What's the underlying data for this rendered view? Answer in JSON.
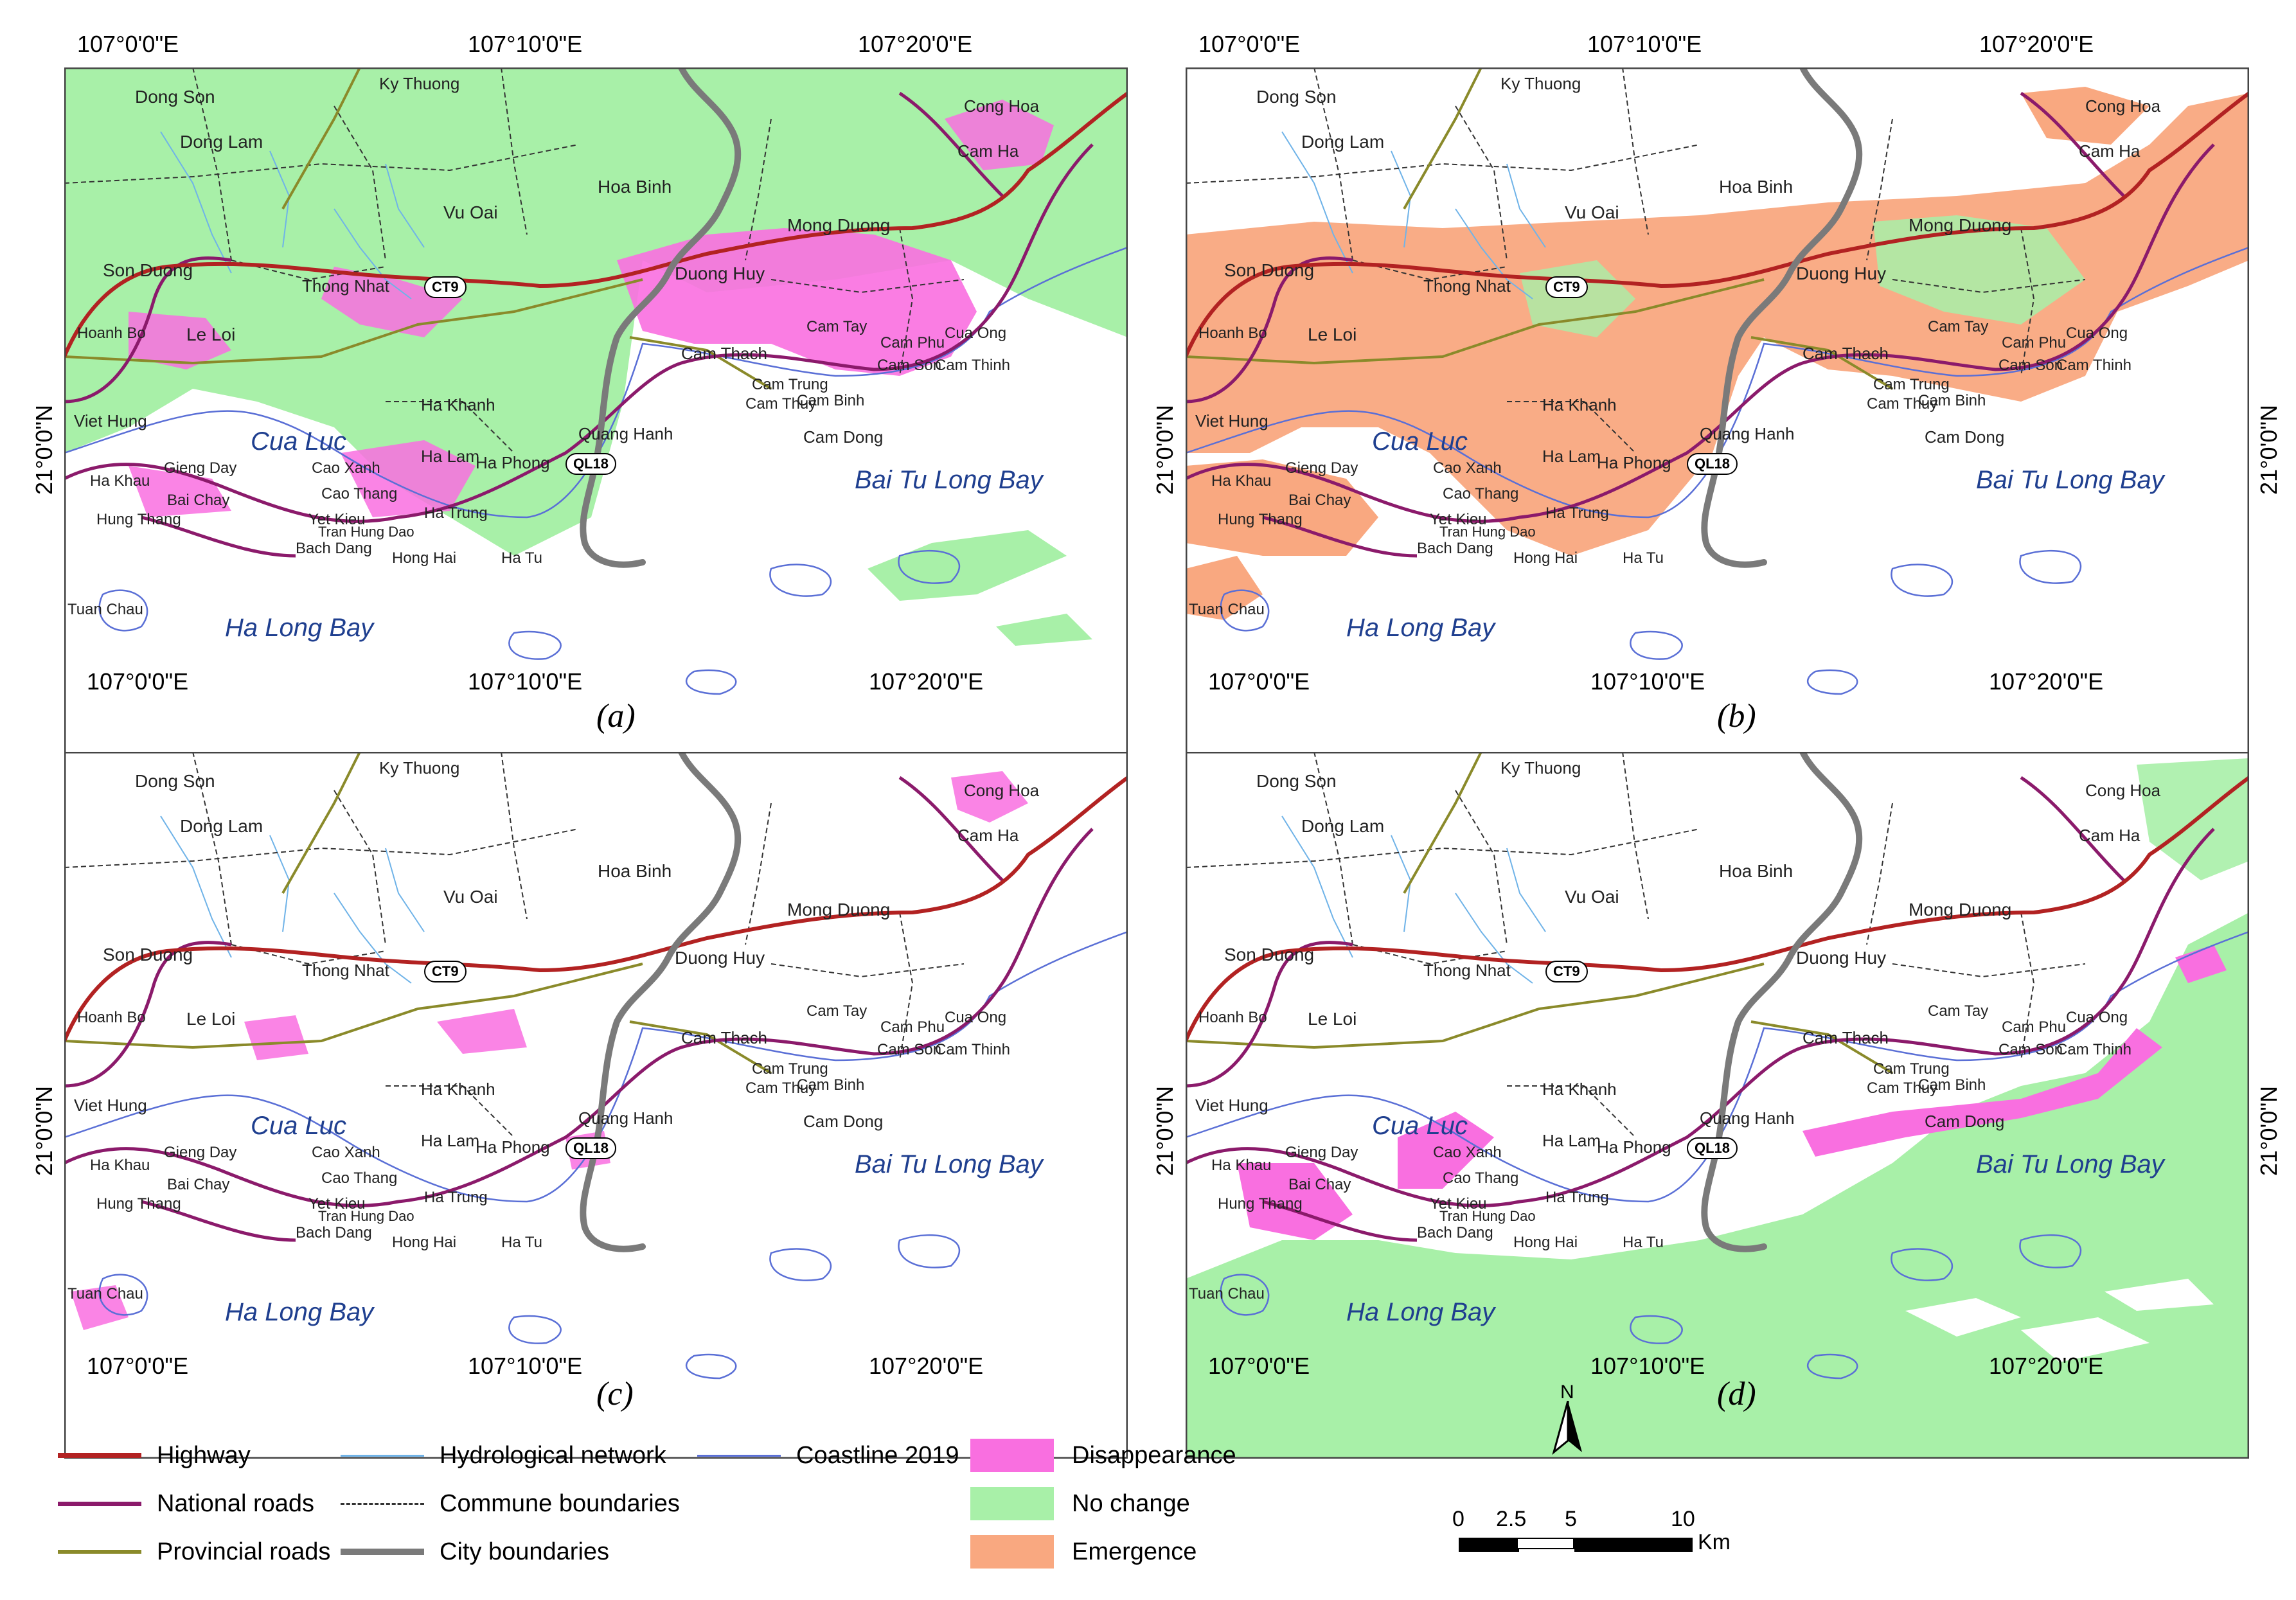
{
  "panels": [
    {
      "label": "(a)"
    },
    {
      "label": "(b)"
    },
    {
      "label": "(c)"
    },
    {
      "label": "(d)"
    }
  ],
  "axis": {
    "lon_ticks": [
      "107°0'0\"E",
      "107°10'0\"E",
      "107°20'0\"E"
    ],
    "lat_tick": "21°0'0\"N"
  },
  "places": {
    "dong_son": "Dong Son",
    "ky_thuong": "Ky Thuong",
    "dong_lam": "Dong Lam",
    "hoa_binh": "Hoa Binh",
    "vu_oai": "Vu Oai",
    "son_duong": "Son Duong",
    "thong_nhat": "Thong Nhat",
    "duong_huy": "Duong Huy",
    "mong_duong": "Mong Duong",
    "cong_hoa": "Cong Hoa",
    "cam_ha": "Cam Ha",
    "le_loi": "Le Loi",
    "hoanh_bo": "Hoanh Bo",
    "viet_hung": "Viet Hung",
    "ha_khanh": "Ha Khanh",
    "cam_thach": "Cam Thach",
    "cam_tay": "Cam Tay",
    "cam_phu": "Cam Phu",
    "cua_ong": "Cua Ong",
    "cam_son": "Cam Son",
    "cam_thinh": "Cam Thinh",
    "cam_trung": "Cam Trung",
    "cam_thuy": "Cam Thuy",
    "cam_binh": "Cam Binh",
    "cam_dong": "Cam Dong",
    "quang_hanh": "Quang Hanh",
    "ha_lam": "Ha Lam",
    "cao_xanh": "Cao Xanh",
    "ha_phong": "Ha Phong",
    "gieng_day": "Gieng Day",
    "ha_khau": "Ha Khau",
    "bai_chay": "Bai Chay",
    "hung_thang": "Hung Thang",
    "cao_thang": "Cao Thang",
    "yet_kieu": "Yet Kieu",
    "tran_hung_dao": "Tran Hung Dao",
    "ha_trung": "Ha Trung",
    "bach_dang": "Bach Dang",
    "hong_hai": "Hong Hai",
    "ha_tu": "Ha Tu",
    "tuan_chau": "Tuan Chau",
    "cua_luc": "Cua Luc",
    "bai_tu_long_bay": "Bai Tu Long Bay",
    "ha_long_bay": "Ha Long Bay",
    "ct9": "CT9",
    "ql18": "QL18"
  },
  "legend": {
    "highway": "Highway",
    "national_roads": "National roads",
    "provincial_roads": "Provincial roads",
    "hydro": "Hydrological network",
    "commune": "Commune boundaries",
    "city": "City boundaries",
    "coastline": "Coastline 2019",
    "disappearance": "Disappearance",
    "no_change": "No change",
    "emergence": "Emergence"
  },
  "colors": {
    "highway": "#b22222",
    "national": "#8b1a6b",
    "provincial": "#8a8a2a",
    "hydro": "#6fb3e8",
    "commune": "#333333",
    "city": "#7a7a7a",
    "coastline": "#5a6fd6",
    "disappearance": "#f96fe0",
    "no_change": "#a8f0a8",
    "emergence": "#f9a880"
  },
  "scale": {
    "ticks": [
      "0",
      "2.5",
      "5",
      "10"
    ],
    "unit": "Km"
  },
  "north": "N"
}
